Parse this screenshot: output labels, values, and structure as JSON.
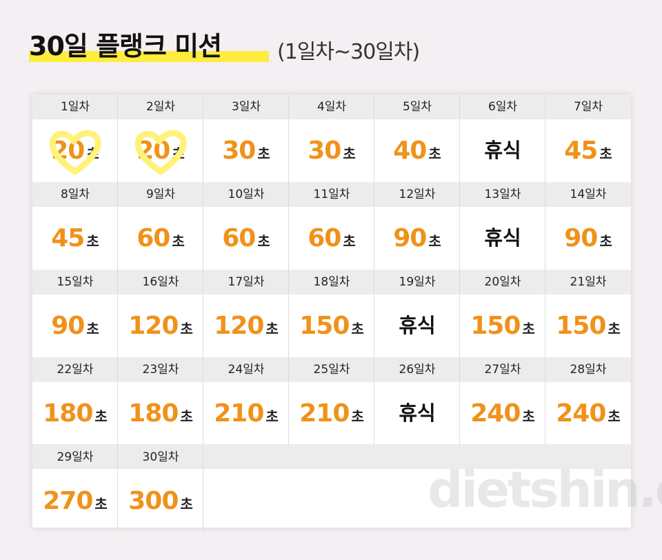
{
  "header": {
    "title": "30일 플랭크 미션",
    "subtitle": "(1일차~30일차)"
  },
  "unit": "초",
  "days": [
    {
      "label": "1일차",
      "value": "20"
    },
    {
      "label": "2일차",
      "value": "20"
    },
    {
      "label": "3일차",
      "value": "30"
    },
    {
      "label": "4일차",
      "value": "30"
    },
    {
      "label": "5일차",
      "value": "40"
    },
    {
      "label": "6일차",
      "rest": "휴식"
    },
    {
      "label": "7일차",
      "value": "45"
    },
    {
      "label": "8일차",
      "value": "45"
    },
    {
      "label": "9일차",
      "value": "60"
    },
    {
      "label": "10일차",
      "value": "60"
    },
    {
      "label": "11일차",
      "value": "60"
    },
    {
      "label": "12일차",
      "value": "90"
    },
    {
      "label": "13일차",
      "rest": "휴식"
    },
    {
      "label": "14일차",
      "value": "90"
    },
    {
      "label": "15일차",
      "value": "90"
    },
    {
      "label": "16일차",
      "value": "120"
    },
    {
      "label": "17일차",
      "value": "120"
    },
    {
      "label": "18일차",
      "value": "150"
    },
    {
      "label": "19일차",
      "rest": "휴식"
    },
    {
      "label": "20일차",
      "value": "150"
    },
    {
      "label": "21일차",
      "value": "150"
    },
    {
      "label": "22일차",
      "value": "180"
    },
    {
      "label": "23일차",
      "value": "180"
    },
    {
      "label": "24일차",
      "value": "210"
    },
    {
      "label": "25일차",
      "value": "210"
    },
    {
      "label": "26일차",
      "rest": "휴식"
    },
    {
      "label": "27일차",
      "value": "240"
    },
    {
      "label": "28일차",
      "value": "240"
    },
    {
      "label": "29일차",
      "value": "270"
    },
    {
      "label": "30일차",
      "value": "300"
    }
  ],
  "watermark": "dietshin.com"
}
